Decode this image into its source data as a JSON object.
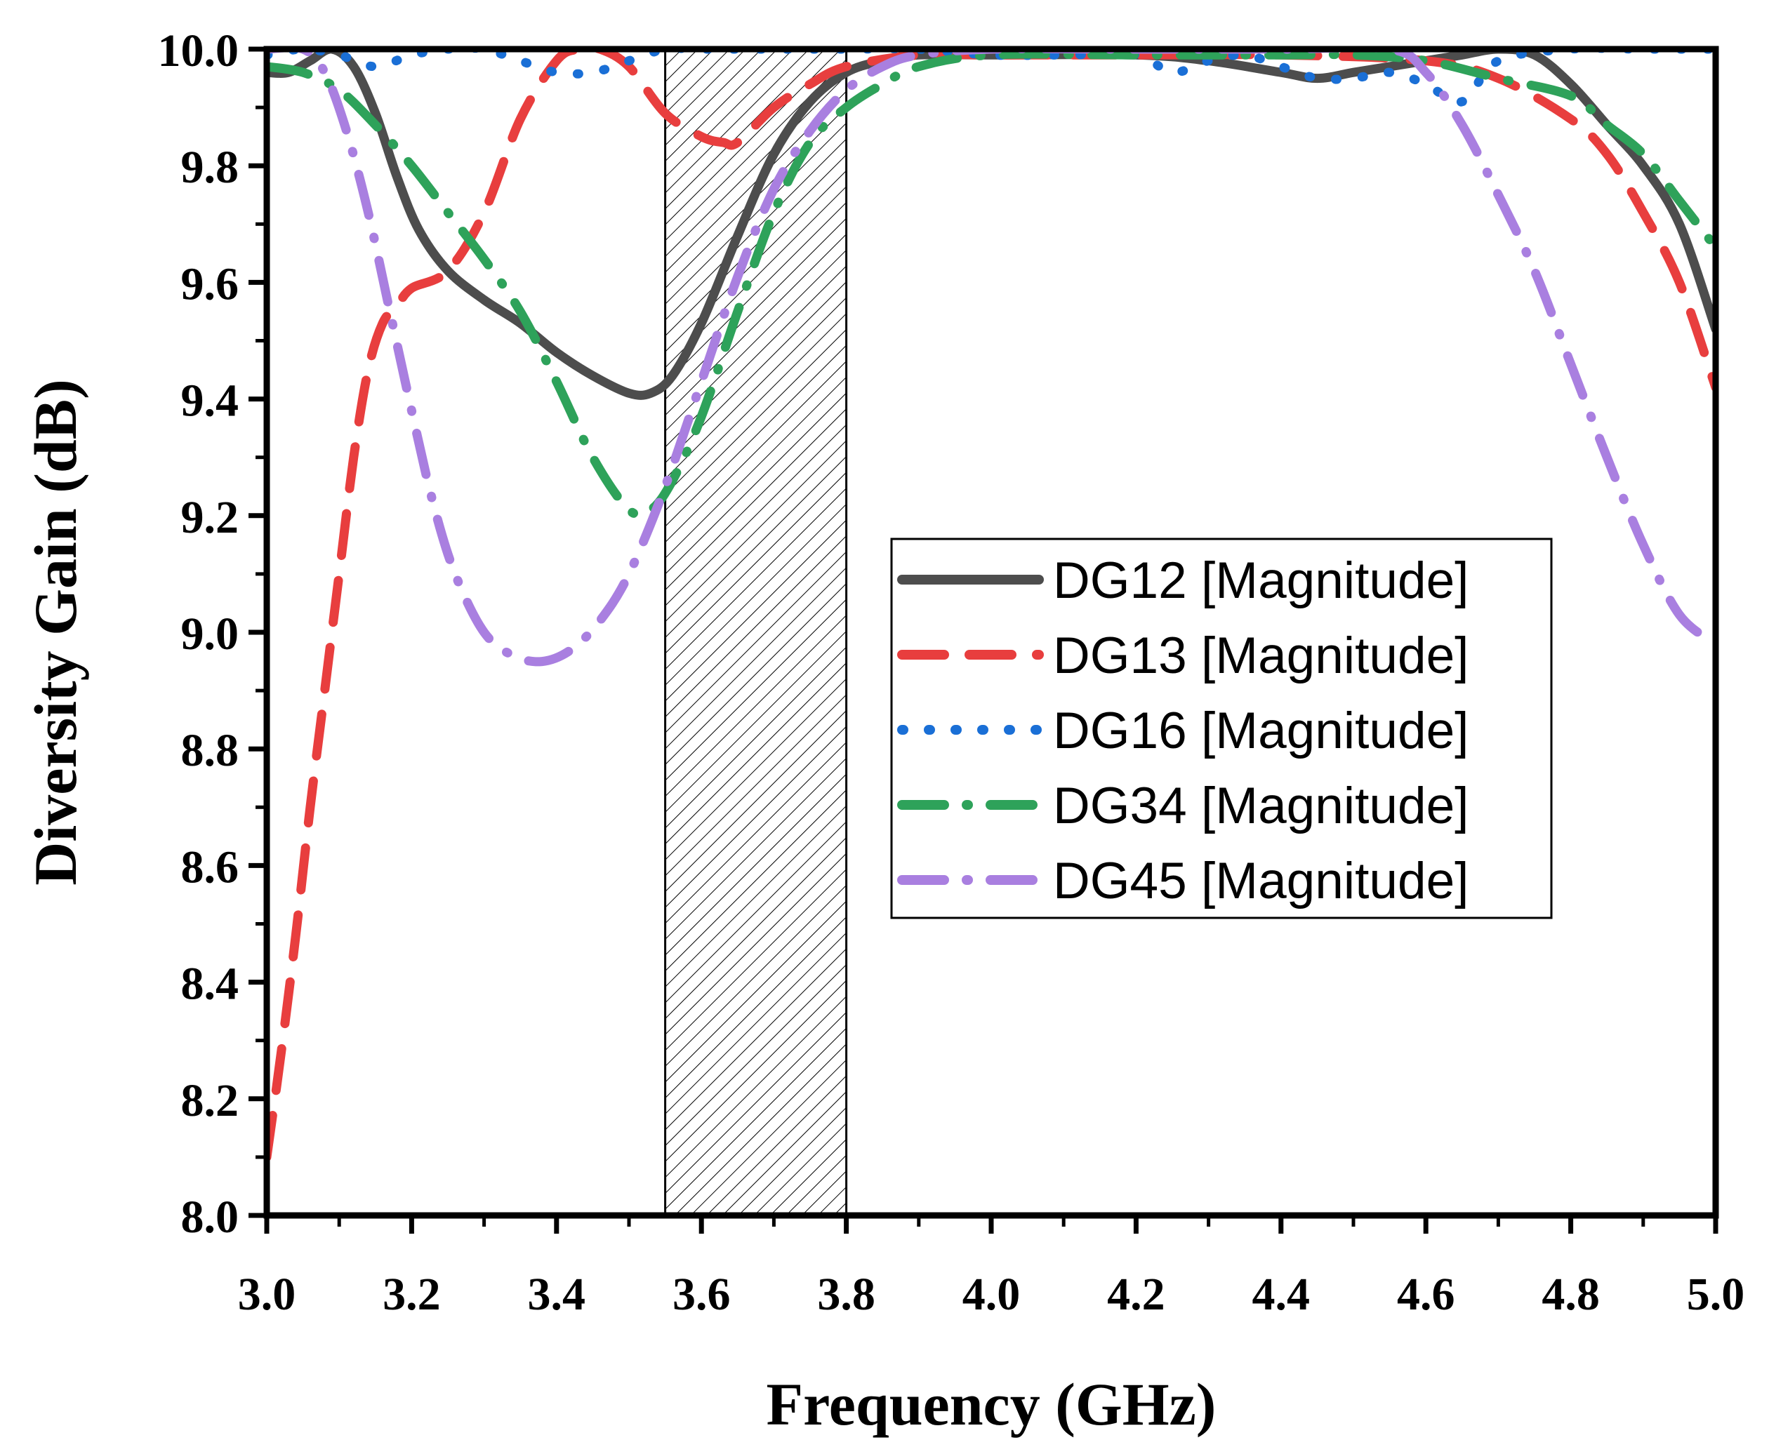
{
  "chart_data": {
    "type": "line",
    "title": "",
    "xlabel": "Frequency (GHz)",
    "ylabel": "Diversity Gain (dB)",
    "xlim": [
      3.0,
      5.0
    ],
    "ylim": [
      8.0,
      10.0
    ],
    "xticks": [
      "3.0",
      "3.2",
      "3.4",
      "3.6",
      "3.8",
      "4.0",
      "4.2",
      "4.4",
      "4.6",
      "4.8",
      "5.0"
    ],
    "yticks": [
      "8.0",
      "8.2",
      "8.4",
      "8.6",
      "8.8",
      "9.0",
      "9.2",
      "9.4",
      "9.6",
      "9.8",
      "10.0"
    ],
    "grid": false,
    "legend_position": "center-right",
    "shaded_band": {
      "x_start": 3.55,
      "x_end": 3.8,
      "pattern": "diagonal-hatch"
    },
    "series": [
      {
        "name": "DG12 [Magnitude]",
        "color": "#4d4d4d",
        "style": "solid",
        "x": [
          3.0,
          3.03,
          3.06,
          3.09,
          3.12,
          3.15,
          3.18,
          3.21,
          3.25,
          3.3,
          3.35,
          3.4,
          3.45,
          3.5,
          3.53,
          3.56,
          3.6,
          3.65,
          3.7,
          3.75,
          3.8,
          3.85,
          3.9,
          4.0,
          4.2,
          4.3,
          4.4,
          4.45,
          4.5,
          4.55,
          4.6,
          4.65,
          4.7,
          4.75,
          4.8,
          4.85,
          4.9,
          4.95,
          5.0
        ],
        "y": [
          9.96,
          9.96,
          9.98,
          10.0,
          9.97,
          9.89,
          9.78,
          9.69,
          9.62,
          9.57,
          9.53,
          9.48,
          9.44,
          9.41,
          9.41,
          9.44,
          9.53,
          9.68,
          9.82,
          9.91,
          9.96,
          9.98,
          9.99,
          9.99,
          9.99,
          9.98,
          9.96,
          9.95,
          9.96,
          9.97,
          9.98,
          9.99,
          10.0,
          9.99,
          9.94,
          9.87,
          9.8,
          9.7,
          9.52
        ]
      },
      {
        "name": "DG13 [Magnitude]",
        "color": "#e83e3e",
        "style": "dashed",
        "x": [
          3.0,
          3.02,
          3.04,
          3.06,
          3.08,
          3.1,
          3.12,
          3.14,
          3.16,
          3.18,
          3.2,
          3.25,
          3.3,
          3.35,
          3.4,
          3.43,
          3.46,
          3.5,
          3.55,
          3.6,
          3.63,
          3.65,
          3.7,
          3.75,
          3.8,
          3.9,
          4.0,
          4.2,
          4.4,
          4.6,
          4.7,
          4.8,
          4.85,
          4.9,
          4.95,
          5.0
        ],
        "y": [
          8.1,
          8.28,
          8.48,
          8.7,
          8.9,
          9.1,
          9.3,
          9.45,
          9.53,
          9.56,
          9.59,
          9.62,
          9.72,
          9.88,
          9.98,
          10.0,
          10.0,
          9.97,
          9.89,
          9.85,
          9.84,
          9.84,
          9.9,
          9.94,
          9.97,
          9.99,
          9.99,
          9.99,
          9.99,
          9.98,
          9.95,
          9.88,
          9.82,
          9.72,
          9.6,
          9.42
        ]
      },
      {
        "name": "DG16 [Magnitude]",
        "color": "#1a6fd6",
        "style": "dotted",
        "x": [
          3.0,
          3.05,
          3.1,
          3.15,
          3.2,
          3.25,
          3.3,
          3.35,
          3.4,
          3.45,
          3.5,
          3.55,
          3.6,
          3.7,
          3.8,
          3.9,
          4.0,
          4.1,
          4.2,
          4.25,
          4.3,
          4.35,
          4.4,
          4.45,
          4.5,
          4.55,
          4.6,
          4.65,
          4.7,
          4.8,
          4.9,
          5.0
        ],
        "y": [
          9.99,
          10.0,
          9.99,
          9.97,
          9.99,
          10.0,
          10.0,
          9.98,
          9.96,
          9.96,
          9.98,
          10.0,
          10.0,
          10.0,
          10.0,
          10.0,
          9.99,
          9.99,
          9.99,
          9.96,
          9.98,
          9.99,
          9.97,
          9.95,
          9.95,
          9.96,
          9.94,
          9.91,
          9.98,
          10.0,
          10.0,
          10.0
        ]
      },
      {
        "name": "DG34 [Magnitude]",
        "color": "#2ea25a",
        "style": "dash-dot",
        "x": [
          3.0,
          3.05,
          3.1,
          3.15,
          3.2,
          3.25,
          3.3,
          3.35,
          3.4,
          3.45,
          3.5,
          3.53,
          3.56,
          3.6,
          3.65,
          3.7,
          3.75,
          3.8,
          3.85,
          3.9,
          4.0,
          4.2,
          4.4,
          4.5,
          4.6,
          4.7,
          4.8,
          4.85,
          4.9,
          4.95,
          5.0
        ],
        "y": [
          9.97,
          9.96,
          9.93,
          9.87,
          9.8,
          9.72,
          9.64,
          9.55,
          9.43,
          9.3,
          9.21,
          9.21,
          9.26,
          9.37,
          9.55,
          9.72,
          9.84,
          9.9,
          9.94,
          9.97,
          9.99,
          9.99,
          9.99,
          9.99,
          9.98,
          9.95,
          9.92,
          9.87,
          9.82,
          9.74,
          9.66
        ]
      },
      {
        "name": "DG45 [Magnitude]",
        "color": "#a97fe0",
        "style": "dash-dot",
        "x": [
          3.0,
          3.05,
          3.08,
          3.11,
          3.14,
          3.17,
          3.2,
          3.23,
          3.26,
          3.3,
          3.34,
          3.38,
          3.42,
          3.46,
          3.5,
          3.55,
          3.6,
          3.65,
          3.7,
          3.75,
          3.8,
          3.85,
          3.9,
          4.0,
          4.2,
          4.4,
          4.55,
          4.6,
          4.65,
          4.7,
          4.75,
          4.8,
          4.85,
          4.9,
          4.95,
          5.0
        ],
        "y": [
          10.0,
          10.0,
          9.96,
          9.86,
          9.72,
          9.55,
          9.38,
          9.22,
          9.1,
          9.0,
          8.96,
          8.95,
          8.97,
          9.02,
          9.1,
          9.25,
          9.43,
          9.61,
          9.76,
          9.86,
          9.93,
          9.97,
          9.99,
          10.0,
          10.0,
          10.0,
          10.0,
          9.96,
          9.87,
          9.75,
          9.62,
          9.46,
          9.3,
          9.15,
          9.03,
          8.98
        ]
      }
    ]
  }
}
